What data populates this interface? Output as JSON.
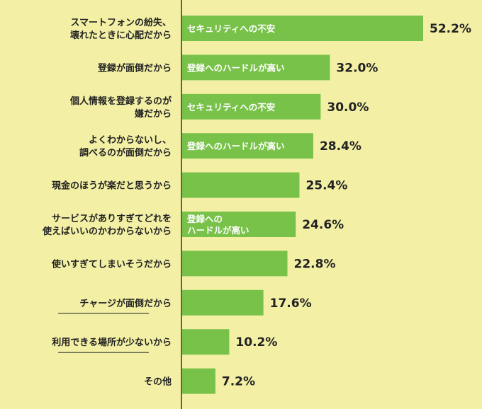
{
  "chart_data": {
    "type": "bar",
    "orientation": "horizontal",
    "unit": "%",
    "bar_color": "#79c24a",
    "background_color": "#f3f0a6",
    "xlim": [
      0,
      60
    ],
    "grid": false,
    "categories": [
      [
        "スマートフォンの紛失、",
        "壊れたときに心配だから"
      ],
      [
        "登録が面倒だから"
      ],
      [
        "個人情報を登録するのが",
        "嫌だから"
      ],
      [
        "よくわからないし、",
        "調べるのが面倒だから"
      ],
      [
        "現金のほうが楽だと思うから"
      ],
      [
        "サービスがありすぎてどれを",
        "使えばいいのかわからないから"
      ],
      [
        "使いすぎてしまいそうだから"
      ],
      [
        "チャージが面倒だから"
      ],
      [
        "利用できる場所が少ないから"
      ],
      [
        "その他"
      ]
    ],
    "underlined": [
      false,
      false,
      false,
      false,
      false,
      false,
      false,
      true,
      true,
      false
    ],
    "values": [
      52.2,
      32.0,
      30.0,
      28.4,
      25.4,
      24.6,
      22.8,
      17.6,
      10.2,
      7.2
    ],
    "value_labels": [
      "52.2%",
      "32.0%",
      "30.0%",
      "28.4%",
      "25.4%",
      "24.6%",
      "22.8%",
      "17.6%",
      "10.2%",
      "7.2%"
    ],
    "bar_annotations": [
      [
        "セキュリティへの不安"
      ],
      [
        "登録へのハードルが高い"
      ],
      [
        "セキュリティへの不安"
      ],
      [
        "登録へのハードルが高い"
      ],
      [],
      [
        "登録への",
        "ハードルが高い"
      ],
      [],
      [],
      [],
      []
    ]
  }
}
